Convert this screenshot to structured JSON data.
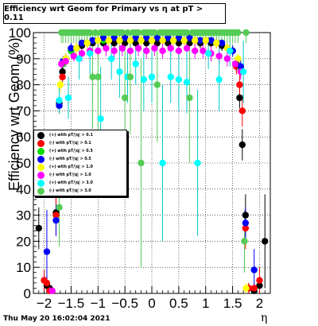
{
  "chart_data": {
    "type": "scatter",
    "title": "Efficiency wrt Geom for Primary vs  η at pT > 0.11",
    "xlabel": "η",
    "ylabel": "Efficiency wrt Geom (%)",
    "xlim": [
      -2.2,
      2.2
    ],
    "ylim": [
      0,
      100
    ],
    "xticks": [
      -2,
      -1.5,
      -1,
      -0.5,
      0,
      0.5,
      1,
      1.5,
      2
    ],
    "xtick_labels": [
      "−2",
      "−1.5",
      "−1",
      "−0.5",
      "0",
      "0.5",
      "1",
      "1.5",
      "2"
    ],
    "yticks": [
      0,
      10,
      20,
      30,
      40,
      50,
      60,
      70,
      80,
      90,
      100
    ],
    "grid": true,
    "legend_position": "middle-left",
    "series": [
      {
        "name": "(+) with pT/|q| > 0.1",
        "color": "#000000",
        "error_color": "#000000",
        "x": [
          -2.1,
          -2.0,
          -1.95,
          -1.9,
          -1.78,
          -1.72,
          -1.66,
          -1.6,
          -1.5,
          -1.3,
          -1.1,
          -0.9,
          -0.7,
          -0.5,
          -0.3,
          -0.1,
          0.1,
          0.3,
          0.5,
          0.7,
          0.9,
          1.1,
          1.3,
          1.5,
          1.57,
          1.63,
          1.68,
          1.74,
          1.8,
          1.9,
          2.0,
          2.1
        ],
        "y": [
          25,
          5,
          3,
          2,
          31,
          73,
          85,
          90,
          93,
          95,
          96,
          96,
          96,
          96,
          96,
          96,
          96,
          96,
          96,
          96,
          96,
          96,
          95,
          93,
          88,
          75,
          57,
          30,
          2,
          1,
          3,
          20
        ],
        "err": [
          8,
          4,
          3,
          2,
          8,
          3,
          2,
          2,
          2,
          2,
          2,
          2,
          2,
          2,
          2,
          2,
          2,
          2,
          2,
          2,
          2,
          2,
          2,
          2,
          3,
          4,
          6,
          8,
          2,
          2,
          3,
          18
        ]
      },
      {
        "name": "(-) with pT/|q| > 0.1",
        "color": "#ff0000",
        "error_color": "#ff0000",
        "x": [
          -2.0,
          -1.95,
          -1.9,
          -1.78,
          -1.72,
          -1.66,
          -1.6,
          -1.4,
          -1.2,
          -1.0,
          -0.8,
          -0.6,
          -0.4,
          -0.2,
          0.0,
          0.2,
          0.4,
          0.6,
          0.8,
          1.0,
          1.2,
          1.4,
          1.57,
          1.63,
          1.68,
          1.74,
          1.8,
          1.9,
          2.0
        ],
        "y": [
          5,
          4,
          1,
          30,
          72,
          83,
          89,
          94,
          96,
          97,
          97,
          97,
          97,
          97,
          97,
          97,
          97,
          97,
          97,
          97,
          96,
          94,
          87,
          80,
          70,
          25,
          2,
          2,
          5
        ],
        "err": [
          4,
          3,
          1,
          8,
          3,
          2,
          2,
          2,
          2,
          2,
          2,
          2,
          2,
          2,
          2,
          2,
          2,
          2,
          2,
          2,
          2,
          2,
          3,
          4,
          6,
          8,
          2,
          2,
          5
        ]
      },
      {
        "name": "(+) with pT/|q| > 0.5",
        "color": "#00dd00",
        "error_color": "#00dd00",
        "x": [
          -1.72,
          -1.65,
          -1.5,
          -1.3,
          -1.1,
          -0.9,
          -0.7,
          -0.5,
          -0.3,
          -0.1,
          0.1,
          0.3,
          0.5,
          0.7,
          0.9,
          1.1,
          1.3,
          1.5,
          1.65
        ],
        "y": [
          72,
          88,
          93,
          96,
          97,
          97,
          98,
          98,
          98,
          98,
          98,
          98,
          98,
          98,
          97,
          97,
          96,
          93,
          86
        ],
        "err": [
          3,
          2,
          2,
          2,
          2,
          2,
          2,
          2,
          2,
          2,
          2,
          2,
          2,
          2,
          2,
          2,
          2,
          2,
          3
        ]
      },
      {
        "name": "(-) with pT/|q| > 0.5",
        "color": "#0000ff",
        "error_color": "#0000ff",
        "x": [
          -1.95,
          -1.78,
          -1.72,
          -1.65,
          -1.5,
          -1.3,
          -1.1,
          -0.9,
          -0.7,
          -0.5,
          -0.3,
          -0.1,
          0.1,
          0.3,
          0.5,
          0.7,
          0.9,
          1.1,
          1.3,
          1.5,
          1.65,
          1.74,
          1.9
        ],
        "y": [
          16,
          28,
          72,
          89,
          94,
          96,
          97,
          98,
          98,
          98,
          98,
          98,
          98,
          98,
          98,
          98,
          97,
          97,
          96,
          93,
          87,
          27,
          9
        ],
        "err": [
          16,
          6,
          3,
          2,
          2,
          2,
          2,
          2,
          2,
          2,
          2,
          2,
          2,
          2,
          2,
          2,
          2,
          2,
          2,
          2,
          3,
          6,
          8
        ]
      },
      {
        "name": "(+) with pT/|q| > 1.0",
        "color": "#ffff00",
        "error_color": "#ffff00",
        "x": [
          -1.7,
          -1.6,
          -1.4,
          -1.2,
          -1.0,
          -0.8,
          -0.6,
          -0.4,
          -0.2,
          0.0,
          0.2,
          0.4,
          0.6,
          0.8,
          1.0,
          1.2,
          1.4,
          1.6,
          1.75
        ],
        "y": [
          80,
          90,
          94,
          96,
          97,
          97,
          97,
          97,
          97,
          97,
          97,
          97,
          97,
          97,
          97,
          96,
          94,
          90,
          2
        ],
        "err": [
          3,
          2,
          2,
          2,
          2,
          2,
          2,
          2,
          2,
          2,
          2,
          2,
          2,
          2,
          2,
          2,
          2,
          2,
          2
        ]
      },
      {
        "name": "(-) with pT/|q| > 1.0",
        "color": "#ff00ff",
        "error_color": "#ff00ff",
        "x": [
          -1.85,
          -1.68,
          -1.6,
          -1.45,
          -1.3,
          -1.15,
          -1.0,
          -0.85,
          -0.7,
          -0.55,
          -0.4,
          -0.25,
          -0.1,
          0.05,
          0.2,
          0.35,
          0.5,
          0.65,
          0.8,
          0.95,
          1.1,
          1.25,
          1.4,
          1.55,
          1.65
        ],
        "y": [
          1,
          88,
          89,
          91,
          92,
          93,
          93,
          94,
          93,
          94,
          93,
          94,
          93,
          94,
          93,
          94,
          93,
          94,
          93,
          93,
          92,
          91,
          90,
          88,
          85
        ],
        "err": [
          1,
          2,
          2,
          2,
          3,
          3,
          3,
          3,
          3,
          3,
          3,
          3,
          3,
          3,
          3,
          3,
          3,
          3,
          3,
          3,
          3,
          3,
          3,
          2,
          3
        ]
      },
      {
        "name": "(+) with pT/|q| > 3.0",
        "color": "#00ffff",
        "error_color": "#00c8c8",
        "x": [
          -1.72,
          -1.55,
          -1.35,
          -1.15,
          -0.95,
          -0.75,
          -0.6,
          -0.45,
          -0.3,
          -0.15,
          0.0,
          0.2,
          0.35,
          0.5,
          0.65,
          0.85,
          1.05,
          1.25,
          1.45,
          1.7
        ],
        "y": [
          74,
          75,
          90,
          92,
          67,
          90,
          85,
          83,
          88,
          82,
          83,
          50,
          83,
          82,
          81,
          50,
          92,
          82,
          93,
          85
        ],
        "err": [
          5,
          8,
          8,
          8,
          20,
          8,
          10,
          10,
          8,
          12,
          10,
          30,
          10,
          12,
          12,
          28,
          6,
          12,
          6,
          12
        ]
      },
      {
        "name": "(-) with pT/|q| > 3.0",
        "color": "#55cc55",
        "error_color": "#55cc55",
        "x": [
          -1.72,
          -1.68,
          -1.65,
          -1.6,
          -1.55,
          -1.5,
          -1.45,
          -1.4,
          -1.35,
          -1.3,
          -1.25,
          -1.2,
          -1.15,
          -1.1,
          -1.05,
          -1.0,
          -0.95,
          -0.9,
          -0.85,
          -0.8,
          -0.75,
          -0.7,
          -0.65,
          -0.6,
          -0.55,
          -0.5,
          -0.45,
          -0.4,
          -0.35,
          -0.3,
          -0.25,
          -0.2,
          -0.15,
          -0.1,
          -0.05,
          0.0,
          0.05,
          0.1,
          0.15,
          0.2,
          0.25,
          0.3,
          0.35,
          0.4,
          0.45,
          0.5,
          0.55,
          0.6,
          0.65,
          0.7,
          0.75,
          0.8,
          0.85,
          0.9,
          0.95,
          1.0,
          1.05,
          1.1,
          1.15,
          1.2,
          1.25,
          1.3,
          1.35,
          1.4,
          1.45,
          1.5,
          1.55,
          1.6,
          1.72,
          1.75
        ],
        "y": [
          33,
          100,
          100,
          100,
          100,
          100,
          100,
          100,
          100,
          100,
          100,
          100,
          100,
          83,
          100,
          83,
          100,
          100,
          100,
          100,
          100,
          100,
          100,
          100,
          100,
          75,
          100,
          83,
          100,
          100,
          100,
          50,
          100,
          100,
          100,
          100,
          100,
          80,
          100,
          100,
          100,
          100,
          100,
          100,
          100,
          100,
          100,
          100,
          100,
          75,
          100,
          100,
          100,
          100,
          100,
          100,
          100,
          100,
          100,
          100,
          100,
          100,
          100,
          100,
          100,
          100,
          100,
          100,
          20,
          100
        ],
        "err": [
          15,
          4,
          4,
          4,
          4,
          4,
          4,
          4,
          6,
          4,
          4,
          4,
          4,
          20,
          4,
          22,
          4,
          4,
          4,
          4,
          4,
          4,
          4,
          4,
          4,
          25,
          4,
          22,
          4,
          4,
          4,
          40,
          4,
          4,
          4,
          4,
          4,
          22,
          4,
          4,
          4,
          4,
          4,
          4,
          4,
          4,
          4,
          4,
          4,
          25,
          4,
          4,
          4,
          4,
          4,
          4,
          4,
          4,
          4,
          4,
          4,
          4,
          4,
          4,
          4,
          4,
          4,
          4,
          12,
          4
        ]
      }
    ]
  },
  "footer": {
    "timestamp": "Thu May 20 16:02:04 2021"
  }
}
